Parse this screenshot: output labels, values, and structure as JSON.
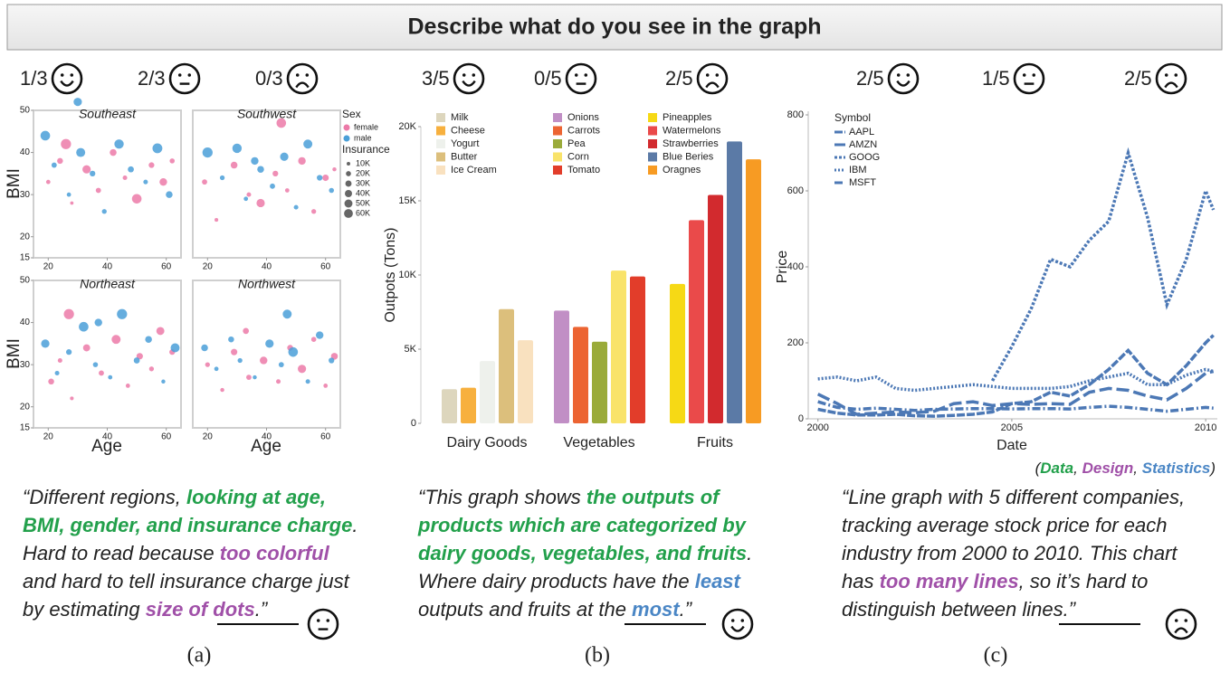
{
  "header": {
    "title": "Describe what do you see in the graph"
  },
  "panels": [
    {
      "ratings": [
        "1/3",
        "2/3",
        "0/3"
      ],
      "caption": "(a)",
      "quote": [
        [
          {
            "text": "“Different regions, "
          },
          {
            "text": "looking at age,",
            "color": "#22a04b",
            "bold": true
          }
        ],
        [
          {
            "text": "BMI, gender, and insurance charge",
            "color": "#22a04b",
            "bold": true
          },
          {
            "text": "."
          }
        ],
        [
          {
            "text": "Hard to read because "
          },
          {
            "text": "too colorful",
            "color": "#a050a8",
            "bold": true
          }
        ],
        [
          {
            "text": "and hard to tell insurance charge just"
          }
        ],
        [
          {
            "text": "by estimating "
          },
          {
            "text": "size of dots",
            "color": "#a050a8",
            "bold": true
          },
          {
            "text": ".”"
          }
        ]
      ]
    },
    {
      "ratings": [
        "3/5",
        "0/5",
        "2/5"
      ],
      "caption": "(b)",
      "quote": [
        [
          {
            "text": "“This graph shows "
          },
          {
            "text": "the outputs of",
            "color": "#22a04b",
            "bold": true
          }
        ],
        [
          {
            "text": "products which are categorized by",
            "color": "#22a04b",
            "bold": true
          }
        ],
        [
          {
            "text": "dairy goods, vegetables, and fruits",
            "color": "#22a04b",
            "bold": true
          },
          {
            "text": "."
          }
        ],
        [
          {
            "text": "Where dairy products have the "
          },
          {
            "text": "least",
            "color": "#4a86c5",
            "bold": true
          }
        ],
        [
          {
            "text": "outputs and fruits at the "
          },
          {
            "text": "most",
            "color": "#4a86c5",
            "bold": true
          },
          {
            "text": ".”"
          }
        ]
      ]
    },
    {
      "ratings": [
        "2/5",
        "1/5",
        "2/5"
      ],
      "caption": "(c)",
      "quote": [
        [
          {
            "text": "“Line graph with 5 different companies,"
          }
        ],
        [
          {
            "text": "tracking average stock price for each"
          }
        ],
        [
          {
            "text": "industry from 2000 to 2010. This chart"
          }
        ],
        [
          {
            "text": "has "
          },
          {
            "text": "too many lines",
            "color": "#a050a8",
            "bold": true
          },
          {
            "text": ", so it’s hard to"
          }
        ],
        [
          {
            "text": "distinguish between lines.”"
          }
        ]
      ]
    }
  ],
  "legend_key": [
    {
      "text": "("
    },
    {
      "text": "Data",
      "color": "#22a04b",
      "bold": true
    },
    {
      "text": ", "
    },
    {
      "text": "Design",
      "color": "#a050a8",
      "bold": true
    },
    {
      "text": ", "
    },
    {
      "text": "Statistics",
      "color": "#4a86c5",
      "bold": true
    },
    {
      "text": ")"
    }
  ],
  "chart_data": [
    {
      "type": "scatter",
      "xlabel": "Age",
      "ylabel": "BMI",
      "facets": [
        "Southeast",
        "Southwest",
        "Northeast",
        "Northwest"
      ],
      "xlim": [
        15,
        65
      ],
      "xticks": [
        20,
        40,
        60
      ],
      "ylim": [
        15,
        50
      ],
      "yticks": [
        15,
        20,
        30,
        40,
        50
      ],
      "legend_title": "Sex",
      "size_title": "Insurance",
      "size_ticks": [
        {
          "value": 10000,
          "label": "10K"
        },
        {
          "value": 20000,
          "label": "20K"
        },
        {
          "value": 30000,
          "label": "30K"
        },
        {
          "value": 40000,
          "label": "40K"
        },
        {
          "value": 50000,
          "label": "50K"
        },
        {
          "value": 60000,
          "label": "60K"
        }
      ],
      "series": [
        {
          "name": "female",
          "color": "#ec7aa8",
          "facets": [
            {
              "x": [
                20,
                24,
                28,
                33,
                37,
                42,
                46,
                50,
                55,
                59,
                62,
                26
              ],
              "y": [
                33,
                38,
                28,
                36,
                31,
                40,
                34,
                29,
                37,
                33,
                38,
                42
              ],
              "size": [
                8000,
                15000,
                5000,
                30000,
                12000,
                20000,
                9000,
                40000,
                14000,
                25000,
                11000,
                45000
              ]
            },
            {
              "x": [
                19,
                23,
                29,
                34,
                38,
                43,
                47,
                52,
                56,
                60,
                63,
                45
              ],
              "y": [
                33,
                24,
                37,
                30,
                28,
                35,
                31,
                38,
                26,
                34,
                36,
                47
              ],
              "size": [
                12000,
                6000,
                20000,
                9000,
                30000,
                14000,
                8000,
                25000,
                10000,
                18000,
                7000,
                40000
              ]
            },
            {
              "x": [
                21,
                24,
                28,
                33,
                38,
                43,
                47,
                51,
                55,
                58,
                62,
                27
              ],
              "y": [
                26,
                31,
                22,
                34,
                28,
                36,
                25,
                32,
                29,
                38,
                33,
                42
              ],
              "size": [
                15000,
                9000,
                6000,
                22000,
                12000,
                35000,
                8000,
                18000,
                10000,
                28000,
                14000,
                45000
              ]
            },
            {
              "x": [
                20,
                25,
                29,
                34,
                39,
                44,
                48,
                52,
                56,
                60,
                63,
                33
              ],
              "y": [
                30,
                24,
                33,
                27,
                31,
                26,
                34,
                29,
                36,
                25,
                32,
                38
              ],
              "size": [
                10000,
                7000,
                18000,
                12000,
                25000,
                9000,
                15000,
                30000,
                11000,
                8000,
                20000,
                16000
              ]
            }
          ]
        },
        {
          "name": "male",
          "color": "#4a9fd8",
          "facets": [
            {
              "x": [
                19,
                22,
                27,
                31,
                35,
                39,
                44,
                48,
                53,
                57,
                61,
                30
              ],
              "y": [
                44,
                37,
                30,
                40,
                35,
                26,
                42,
                36,
                33,
                41,
                30,
                52
              ],
              "size": [
                40000,
                12000,
                8000,
                35000,
                14000,
                10000,
                38000,
                16000,
                9000,
                42000,
                20000,
                30000
              ]
            },
            {
              "x": [
                20,
                25,
                30,
                33,
                38,
                42,
                46,
                50,
                54,
                58,
                62,
                36
              ],
              "y": [
                40,
                34,
                41,
                29,
                36,
                32,
                39,
                27,
                42,
                34,
                31,
                38
              ],
              "size": [
                45000,
                10000,
                38000,
                8000,
                20000,
                12000,
                30000,
                9000,
                35000,
                14000,
                11000,
                25000
              ]
            },
            {
              "x": [
                19,
                23,
                27,
                32,
                36,
                41,
                45,
                50,
                54,
                59,
                63,
                37
              ],
              "y": [
                35,
                28,
                33,
                39,
                30,
                27,
                42,
                31,
                36,
                26,
                34,
                40
              ],
              "size": [
                30000,
                9000,
                14000,
                40000,
                11000,
                8000,
                45000,
                16000,
                20000,
                7000,
                35000,
                25000
              ]
            },
            {
              "x": [
                19,
                23,
                28,
                31,
                36,
                41,
                45,
                49,
                54,
                58,
                62,
                47
              ],
              "y": [
                34,
                29,
                36,
                31,
                27,
                35,
                30,
                33,
                26,
                37,
                31,
                42
              ],
              "size": [
                20000,
                8000,
                15000,
                10000,
                7000,
                30000,
                12000,
                40000,
                9000,
                25000,
                14000,
                35000
              ]
            }
          ]
        }
      ]
    },
    {
      "type": "grouped-bar",
      "ylabel": "Outpots (Tons)",
      "ylim": [
        0,
        20000
      ],
      "yticks": [
        0,
        {
          "value": 5000,
          "label": "5K"
        },
        {
          "value": 10000,
          "label": "10K"
        },
        {
          "value": 15000,
          "label": "15K"
        },
        {
          "value": 20000,
          "label": "20K"
        }
      ],
      "groups": [
        {
          "name": "Dairy Goods",
          "items": [
            {
              "name": "Milk",
              "color": "#ddd6bd",
              "value": 2300
            },
            {
              "name": "Cheese",
              "color": "#f7b03e",
              "value": 2400
            },
            {
              "name": "Yogurt",
              "color": "#eef1ec",
              "value": 4200
            },
            {
              "name": "Butter",
              "color": "#dcbf7c",
              "value": 7700
            },
            {
              "name": "Ice Cream",
              "color": "#f9e1bf",
              "value": 5600
            }
          ]
        },
        {
          "name": "Vegetables",
          "items": [
            {
              "name": "Onions",
              "color": "#c18fc5",
              "value": 7600
            },
            {
              "name": "Carrots",
              "color": "#ec6432",
              "value": 6500
            },
            {
              "name": "Pea",
              "color": "#9aab3a",
              "value": 5500
            },
            {
              "name": "Corn",
              "color": "#f9e36a",
              "value": 10300
            },
            {
              "name": "Tomato",
              "color": "#e23d2a",
              "value": 9900
            }
          ]
        },
        {
          "name": "Fruits",
          "items": [
            {
              "name": "Pineapples",
              "color": "#f6d915",
              "value": 9400
            },
            {
              "name": "Watermelons",
              "color": "#ea4a4a",
              "value": 13700
            },
            {
              "name": "Strawberries",
              "color": "#d22a2e",
              "value": 15400
            },
            {
              "name": "Blue Beries",
              "color": "#5b7aa6",
              "value": 19000
            },
            {
              "name": "Oragnes",
              "color": "#f79b23",
              "value": 17800
            }
          ]
        }
      ]
    },
    {
      "type": "line",
      "xlabel": "Date",
      "ylabel": "Price",
      "legend_title": "Symbol",
      "xlim": [
        1999.75,
        2010.3
      ],
      "xticks": [
        2000,
        2005,
        2010
      ],
      "ylim": [
        0,
        800
      ],
      "yticks": [
        0,
        200,
        400,
        600,
        800
      ],
      "x": [
        2000,
        2000.5,
        2001,
        2001.5,
        2002,
        2002.5,
        2003,
        2003.5,
        2004,
        2004.5,
        2005,
        2005.5,
        2006,
        2006.5,
        2007,
        2007.5,
        2008,
        2008.5,
        2009,
        2009.5,
        2010,
        2010.2
      ],
      "series": [
        {
          "name": "AAPL",
          "color": "#4c78b5",
          "dash": "9,2",
          "values": [
            25,
            15,
            10,
            10,
            12,
            8,
            7,
            9,
            12,
            18,
            40,
            45,
            70,
            60,
            90,
            130,
            180,
            120,
            90,
            140,
            200,
            220
          ]
        },
        {
          "name": "AMZN",
          "color": "#4c78b5",
          "dash": "14,5",
          "values": [
            65,
            40,
            12,
            15,
            18,
            16,
            20,
            40,
            45,
            35,
            40,
            38,
            40,
            38,
            70,
            80,
            75,
            60,
            50,
            80,
            120,
            125
          ]
        },
        {
          "name": "GOOG",
          "color": "#4c78b5",
          "dash": "3,2",
          "values": [
            null,
            null,
            null,
            null,
            null,
            null,
            null,
            null,
            null,
            100,
            190,
            290,
            420,
            400,
            470,
            520,
            700,
            530,
            300,
            420,
            600,
            550
          ]
        },
        {
          "name": "IBM",
          "color": "#4c78b5",
          "dash": "2,2",
          "values": [
            105,
            110,
            100,
            110,
            80,
            75,
            80,
            85,
            90,
            85,
            80,
            80,
            80,
            85,
            100,
            110,
            120,
            90,
            90,
            115,
            130,
            125
          ]
        },
        {
          "name": "MSFT",
          "color": "#4c78b5",
          "dash": "9,3,2,3",
          "values": [
            45,
            30,
            25,
            28,
            25,
            22,
            25,
            26,
            27,
            27,
            26,
            27,
            27,
            26,
            30,
            33,
            30,
            25,
            20,
            25,
            30,
            28
          ]
        }
      ]
    }
  ]
}
